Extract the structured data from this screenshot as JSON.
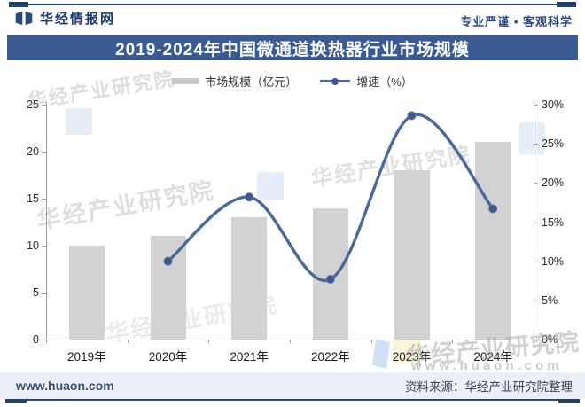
{
  "header": {
    "brand": "华经情报网",
    "slogan": "专业严谨 • 客观科学"
  },
  "title": "2019-2024年中国微通道换热器行业市场规模",
  "legend": {
    "bar_label": "市场规模（亿元）",
    "line_label": "增速（%）"
  },
  "chart_data": {
    "type": "bar",
    "categories": [
      "2019年",
      "2020年",
      "2021年",
      "2022年",
      "2023年",
      "2024年"
    ],
    "series": [
      {
        "name": "市场规模（亿元）",
        "type": "bar",
        "axis": "left",
        "color": "#d2d2d2",
        "values": [
          10,
          11,
          13,
          14,
          18,
          21
        ]
      },
      {
        "name": "增速（%）",
        "type": "line",
        "axis": "right",
        "color": "#4a689c",
        "marker_color": "#3f578c",
        "values": [
          null,
          10.0,
          18.2,
          7.7,
          28.6,
          16.7
        ]
      }
    ],
    "left_axis": {
      "min": 0,
      "max": 25,
      "step": 5
    },
    "right_axis": {
      "min": 0,
      "max": 30,
      "step": 5,
      "suffix": "%"
    },
    "grid": false,
    "legend_position": "top",
    "title": "2019-2024年中国微通道换热器行业市场规模"
  },
  "watermark": {
    "text": "华经产业研究院",
    "site": "www.huaon.com"
  },
  "footer": {
    "site": "www.huaon.com",
    "source": "资料来源：华经产业研究院整理"
  },
  "colors": {
    "banner": "#3a5a94",
    "accent": "#2b4a7c",
    "bar": "#d2d2d2",
    "line": "#4a689c",
    "axis": "#9b9b9b"
  }
}
